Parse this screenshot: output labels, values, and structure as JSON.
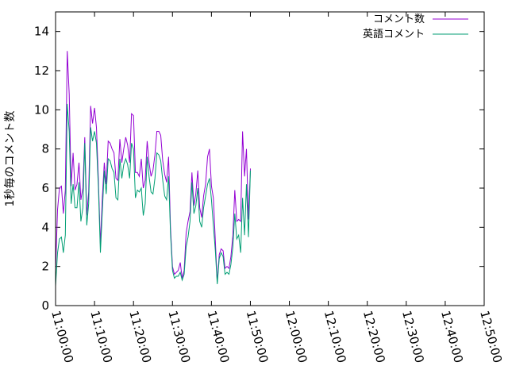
{
  "chart_data": {
    "type": "line",
    "title": "",
    "xlabel": "",
    "ylabel": "1秒毎のコメント数",
    "x_start": "11:00:00",
    "x_step_seconds": 30,
    "xlim": [
      "11:00:00",
      "12:50:00"
    ],
    "ylim": [
      0,
      15
    ],
    "grid": false,
    "legend_position": "top-right",
    "x_ticks": [
      "11:00:00",
      "11:10:00",
      "11:20:00",
      "11:30:00",
      "11:40:00",
      "11:50:00",
      "12:00:00",
      "12:10:00",
      "12:20:00",
      "12:30:00",
      "12:40:00",
      "12:50:00"
    ],
    "y_ticks": [
      "0",
      "2",
      "4",
      "6",
      "8",
      "10",
      "12",
      "14"
    ],
    "series": [
      {
        "name": "コメント数",
        "color": "#9400d3",
        "values": [
          1.8,
          4.9,
          6.0,
          6.1,
          4.7,
          5.9,
          13.0,
          10.8,
          6.1,
          7.8,
          5.9,
          6.2,
          7.3,
          5.4,
          6.0,
          8.6,
          4.6,
          5.8,
          10.2,
          9.3,
          10.1,
          9.1,
          6.4,
          3.1,
          5.5,
          7.3,
          6.2,
          8.4,
          8.3,
          8.0,
          7.8,
          6.5,
          6.4,
          8.5,
          7.3,
          8.0,
          8.6,
          8.2,
          7.3,
          9.8,
          9.7,
          6.8,
          6.8,
          6.6,
          7.5,
          6.0,
          6.4,
          8.4,
          7.3,
          6.6,
          6.9,
          7.7,
          8.9,
          8.9,
          8.7,
          7.4,
          6.7,
          6.3,
          7.6,
          4.0,
          2.0,
          1.6,
          1.7,
          1.8,
          2.2,
          1.4,
          1.8,
          3.7,
          4.3,
          4.8,
          6.8,
          5.1,
          5.7,
          6.9,
          5.0,
          4.5,
          5.6,
          6.2,
          7.6,
          8.0,
          6.1,
          5.5,
          3.3,
          1.2,
          2.6,
          2.9,
          2.8,
          1.9,
          2.0,
          1.9,
          2.5,
          3.6,
          5.9,
          4.3,
          4.4,
          4.3,
          8.9,
          6.6,
          8.0,
          4.4,
          7.0
        ]
      },
      {
        "name": "英語コメント",
        "color": "#009e73",
        "values": [
          1.0,
          2.7,
          3.4,
          3.5,
          2.7,
          3.6,
          10.3,
          8.9,
          5.2,
          6.2,
          5.0,
          5.0,
          6.3,
          4.3,
          5.0,
          8.3,
          4.1,
          5.2,
          9.1,
          8.4,
          8.9,
          8.3,
          6.0,
          2.7,
          4.8,
          6.9,
          5.7,
          7.5,
          7.4,
          7.0,
          6.8,
          5.5,
          5.4,
          7.5,
          6.5,
          7.2,
          7.5,
          7.2,
          6.5,
          8.3,
          8.0,
          5.5,
          5.9,
          5.8,
          6.0,
          4.6,
          5.2,
          7.6,
          6.6,
          5.8,
          5.7,
          6.5,
          7.8,
          7.7,
          7.4,
          6.4,
          5.6,
          5.4,
          6.6,
          3.7,
          1.8,
          1.4,
          1.5,
          1.5,
          1.7,
          1.3,
          1.6,
          3.0,
          3.5,
          4.3,
          6.3,
          4.7,
          5.1,
          6.0,
          4.3,
          4.0,
          5.0,
          5.6,
          6.2,
          6.5,
          5.4,
          4.1,
          2.8,
          1.1,
          2.4,
          2.7,
          2.5,
          1.6,
          1.7,
          1.6,
          2.1,
          3.0,
          4.7,
          3.4,
          3.6,
          2.7,
          5.5,
          3.6,
          6.2,
          3.5,
          6.9
        ]
      }
    ]
  }
}
